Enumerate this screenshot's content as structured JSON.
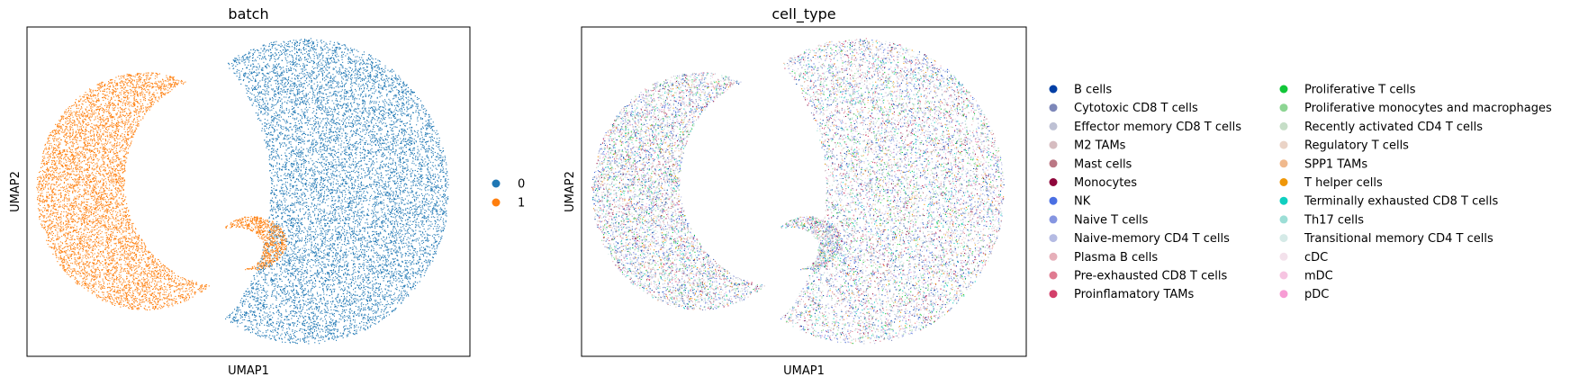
{
  "chart_data": [
    {
      "type": "scatter",
      "title": "batch",
      "xlabel": "UMAP1",
      "ylabel": "UMAP2",
      "ticks": "none",
      "legend_placement": "right",
      "series": [
        {
          "name": "0",
          "color": "#1f77b4"
        },
        {
          "name": "1",
          "color": "#ff7f0e"
        }
      ]
    },
    {
      "type": "scatter",
      "title": "cell_type",
      "xlabel": "UMAP1",
      "ylabel": "UMAP2",
      "ticks": "none",
      "legend_placement": "right",
      "series": [
        {
          "name": "B cells",
          "color": "#023fa5"
        },
        {
          "name": "Cytotoxic CD8 T cells",
          "color": "#7d87b9"
        },
        {
          "name": "Effector memory CD8 T cells",
          "color": "#bec1d4"
        },
        {
          "name": "M2 TAMs",
          "color": "#d6bcc0"
        },
        {
          "name": "Mast cells",
          "color": "#bb7784"
        },
        {
          "name": "Monocytes",
          "color": "#8e063b"
        },
        {
          "name": "NK",
          "color": "#4a6fe3"
        },
        {
          "name": "Naive T cells",
          "color": "#8595e1"
        },
        {
          "name": "Naive-memory CD4 T cells",
          "color": "#b5bbe3"
        },
        {
          "name": "Plasma B cells",
          "color": "#e6afb9"
        },
        {
          "name": "Pre-exhausted CD8 T cells",
          "color": "#e07b91"
        },
        {
          "name": "Proinflamatory TAMs",
          "color": "#d33f6a"
        },
        {
          "name": "Proliferative T cells",
          "color": "#11c638"
        },
        {
          "name": "Proliferative monocytes and macrophages",
          "color": "#8dd593"
        },
        {
          "name": "Recently activated CD4 T cells",
          "color": "#c6dec7"
        },
        {
          "name": "Regulatory T cells",
          "color": "#ead3c6"
        },
        {
          "name": "SPP1 TAMs",
          "color": "#f0b98d"
        },
        {
          "name": "T helper cells",
          "color": "#ef9708"
        },
        {
          "name": "Terminally exhausted CD8 T cells",
          "color": "#0fcfc0"
        },
        {
          "name": "Th17 cells",
          "color": "#9cded6"
        },
        {
          "name": "Transitional memory CD4 T cells",
          "color": "#d5eae7"
        },
        {
          "name": "cDC",
          "color": "#f3e1eb"
        },
        {
          "name": "mDC",
          "color": "#f6c4e1"
        },
        {
          "name": "pDC",
          "color": "#f79cd4"
        }
      ]
    }
  ]
}
